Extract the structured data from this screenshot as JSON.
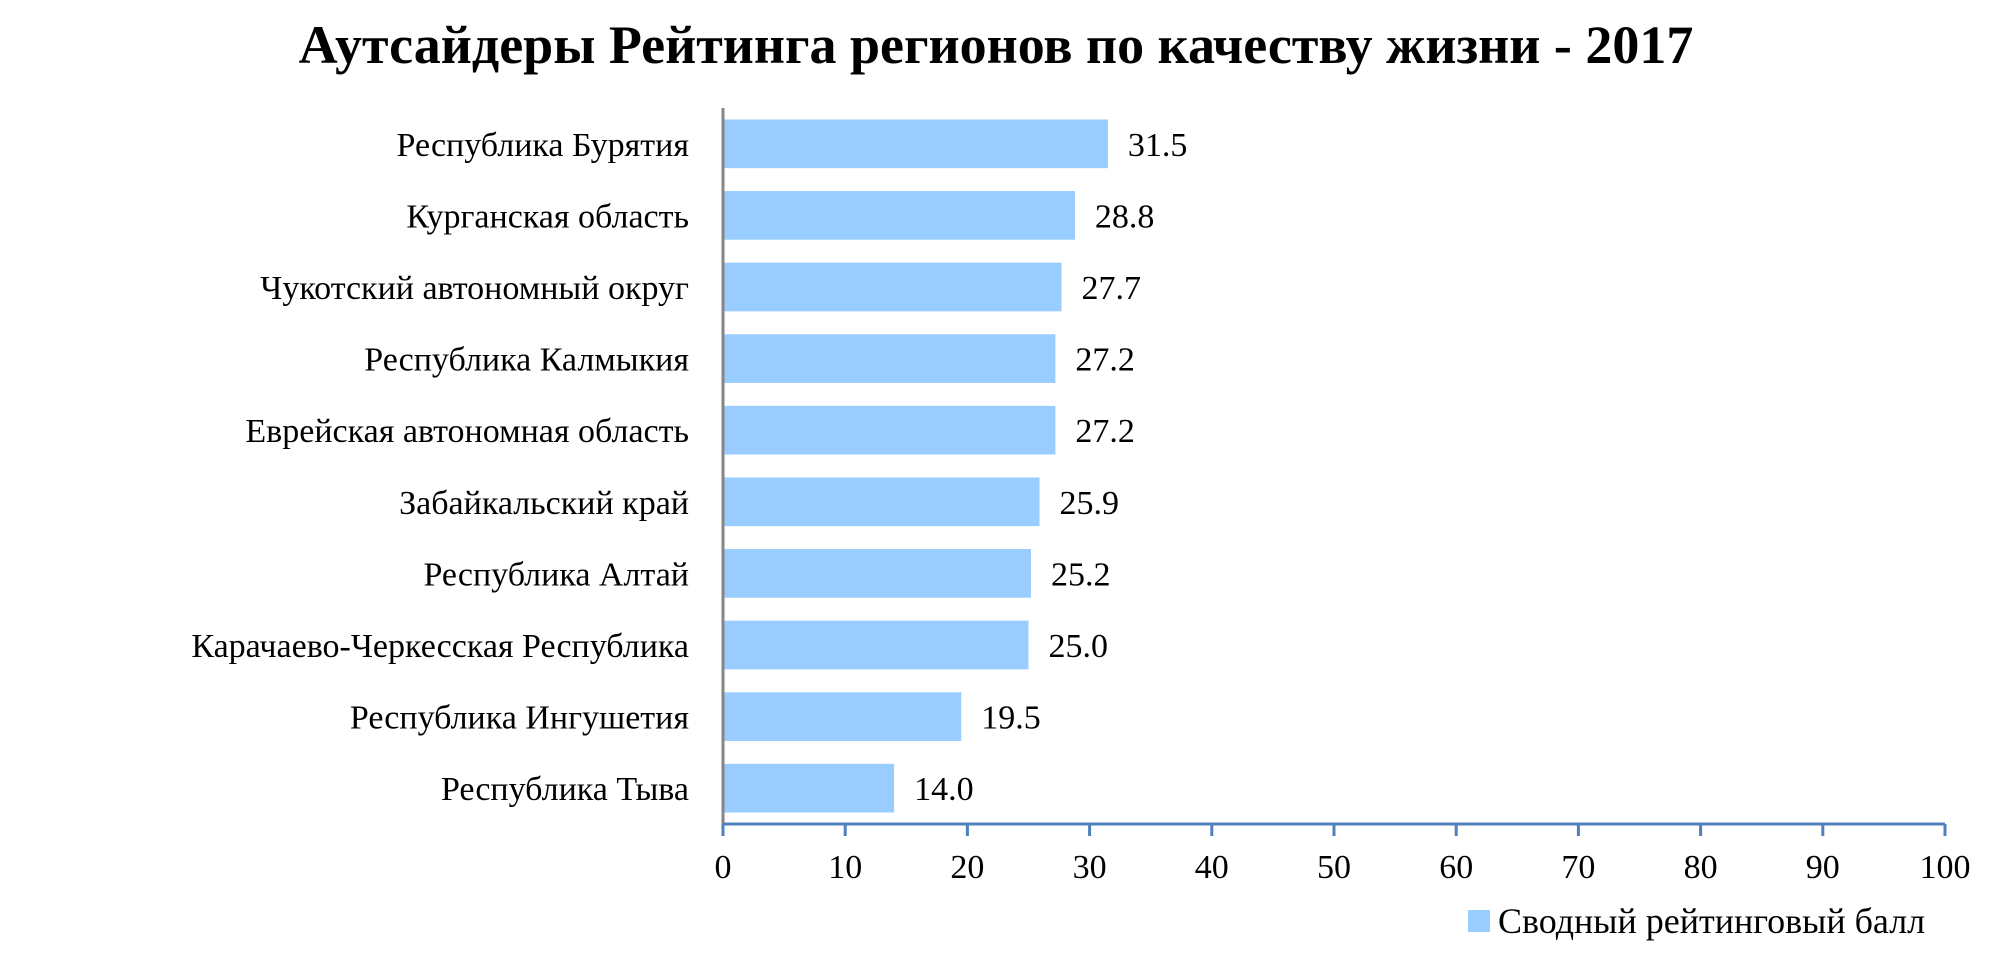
{
  "chart_data": {
    "type": "bar",
    "orientation": "horizontal",
    "title": "Аутсайдеры Рейтинга регионов по качеству жизни - 2017",
    "categories": [
      "Республика Бурятия",
      "Курганская область",
      "Чукотский автономный округ",
      "Республика Калмыкия",
      "Еврейская автономная область",
      "Забайкальский край",
      "Республика Алтай",
      "Карачаево-Черкесская Республика",
      "Республика Ингушетия",
      "Республика Тыва"
    ],
    "series": [
      {
        "name": "Сводный рейтинговый балл",
        "values": [
          31.5,
          28.8,
          27.7,
          27.2,
          27.2,
          25.9,
          25.2,
          25.0,
          19.5,
          14.0
        ],
        "labels": [
          "31.5",
          "28.8",
          "27.7",
          "27.2",
          "27.2",
          "25.9",
          "25.2",
          "25.0",
          "19.5",
          "14.0"
        ]
      }
    ],
    "xlim": [
      0,
      100
    ],
    "xticks": [
      "0",
      "10",
      "20",
      "30",
      "40",
      "50",
      "60",
      "70",
      "80",
      "90",
      "100"
    ],
    "grid": false,
    "legend": "bottom-right",
    "colors": {
      "bar": "#99CCFF",
      "axis": "#4F81BD",
      "category_axis": "#868686"
    }
  }
}
